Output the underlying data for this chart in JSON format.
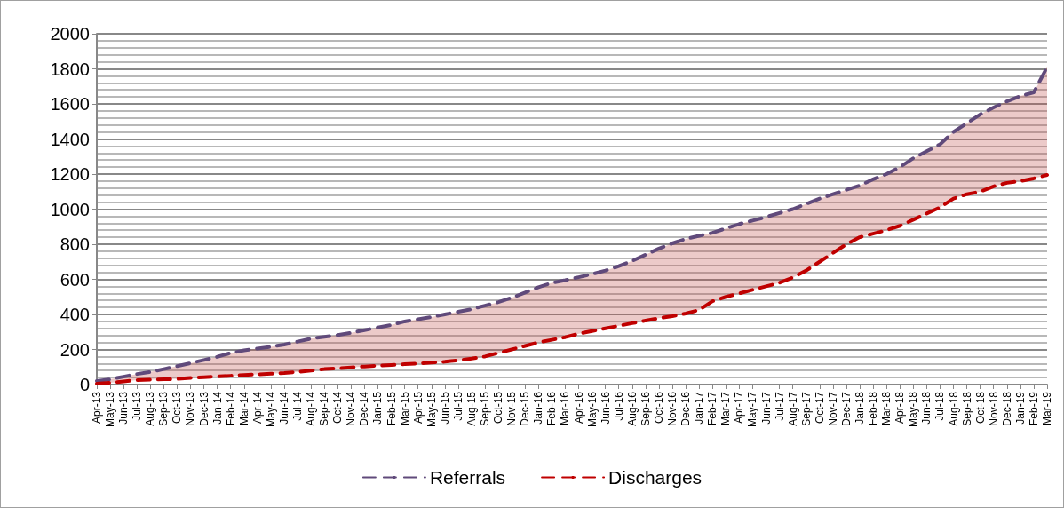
{
  "chart_data": {
    "type": "line",
    "categories": [
      "Apr-13",
      "May-13",
      "Jun-13",
      "Jul-13",
      "Aug-13",
      "Sep-13",
      "Oct-13",
      "Nov-13",
      "Dec-13",
      "Jan-14",
      "Feb-14",
      "Mar-14",
      "Apr-14",
      "May-14",
      "Jun-14",
      "Jul-14",
      "Aug-14",
      "Sep-14",
      "Oct-14",
      "Nov-14",
      "Dec-14",
      "Jan-15",
      "Feb-15",
      "Mar-15",
      "Apr-15",
      "May-15",
      "Jun-15",
      "Jul-15",
      "Aug-15",
      "Sep-15",
      "Oct-15",
      "Nov-15",
      "Dec-15",
      "Jan-16",
      "Feb-16",
      "Mar-16",
      "Apr-16",
      "May-16",
      "Jun-16",
      "Jul-16",
      "Aug-16",
      "Sep-16",
      "Oct-16",
      "Nov-16",
      "Dec-16",
      "Jan-17",
      "Feb-17",
      "Mar-17",
      "Apr-17",
      "May-17",
      "Jun-17",
      "Jul-17",
      "Aug-17",
      "Sep-17",
      "Oct-17",
      "Nov-17",
      "Dec-17",
      "Jan-18",
      "Feb-18",
      "Mar-18",
      "Apr-18",
      "May-18",
      "Jun-18",
      "Jul-18",
      "Aug-18",
      "Sep-18",
      "Oct-18",
      "Nov-18",
      "Dec-18",
      "Jan-19",
      "Feb-19",
      "Mar-19"
    ],
    "series": [
      {
        "name": "Referrals",
        "color": "#604a7b",
        "values": [
          20,
          30,
          45,
          60,
          72,
          88,
          105,
          122,
          140,
          158,
          180,
          195,
          205,
          215,
          228,
          245,
          262,
          272,
          282,
          295,
          310,
          325,
          340,
          360,
          372,
          385,
          400,
          415,
          430,
          450,
          470,
          495,
          525,
          555,
          580,
          595,
          612,
          630,
          650,
          675,
          705,
          740,
          775,
          805,
          830,
          848,
          865,
          890,
          915,
          935,
          955,
          978,
          1000,
          1030,
          1060,
          1085,
          1110,
          1135,
          1170,
          1200,
          1240,
          1290,
          1330,
          1370,
          1440,
          1490,
          1540,
          1580,
          1615,
          1645,
          1665,
          1810
        ],
        "lower": [
          5,
          10,
          18,
          25,
          28,
          30,
          32,
          38,
          42,
          46,
          50,
          55,
          58,
          62,
          66,
          72,
          80,
          88,
          92,
          98,
          103,
          108,
          112,
          116,
          120,
          125,
          130,
          138,
          148,
          160,
          180,
          200,
          220,
          240,
          255,
          270,
          290,
          305,
          320,
          335,
          350,
          365,
          378,
          390,
          405,
          425,
          475,
          500,
          520,
          540,
          560,
          580,
          610,
          650,
          700,
          750,
          800,
          840,
          860,
          880,
          905,
          940,
          975,
          1010,
          1060,
          1085,
          1100,
          1130,
          1150,
          1160,
          1175,
          1195
        ],
        "upper": [
          20,
          30,
          45,
          60,
          72,
          88,
          105,
          122,
          140,
          158,
          180,
          195,
          205,
          215,
          228,
          245,
          262,
          272,
          282,
          295,
          310,
          325,
          340,
          360,
          372,
          385,
          400,
          415,
          430,
          450,
          470,
          495,
          525,
          555,
          580,
          595,
          612,
          630,
          650,
          675,
          705,
          740,
          775,
          805,
          830,
          848,
          865,
          890,
          915,
          935,
          955,
          978,
          1000,
          1030,
          1060,
          1085,
          1110,
          1135,
          1170,
          1200,
          1240,
          1290,
          1330,
          1370,
          1440,
          1490,
          1540,
          1580,
          1615,
          1645,
          1665,
          1810
        ]
      },
      {
        "name": "Discharges",
        "color": "#c00000",
        "values": [
          5,
          10,
          18,
          25,
          28,
          30,
          32,
          38,
          42,
          46,
          50,
          55,
          58,
          62,
          66,
          72,
          80,
          88,
          92,
          98,
          103,
          108,
          112,
          116,
          120,
          125,
          130,
          138,
          148,
          160,
          180,
          200,
          220,
          240,
          255,
          270,
          290,
          305,
          320,
          335,
          350,
          365,
          378,
          390,
          405,
          425,
          475,
          500,
          520,
          540,
          560,
          580,
          610,
          650,
          700,
          750,
          800,
          840,
          860,
          880,
          905,
          940,
          975,
          1010,
          1060,
          1085,
          1100,
          1130,
          1150,
          1160,
          1175,
          1195
        ]
      }
    ],
    "ylim": [
      0,
      2000
    ],
    "yticks": [
      0,
      200,
      400,
      600,
      800,
      1000,
      1200,
      1400,
      1600,
      1800,
      2000
    ],
    "grid": "y",
    "legend": "bottom",
    "marker": "none",
    "line_style": "dashed"
  }
}
